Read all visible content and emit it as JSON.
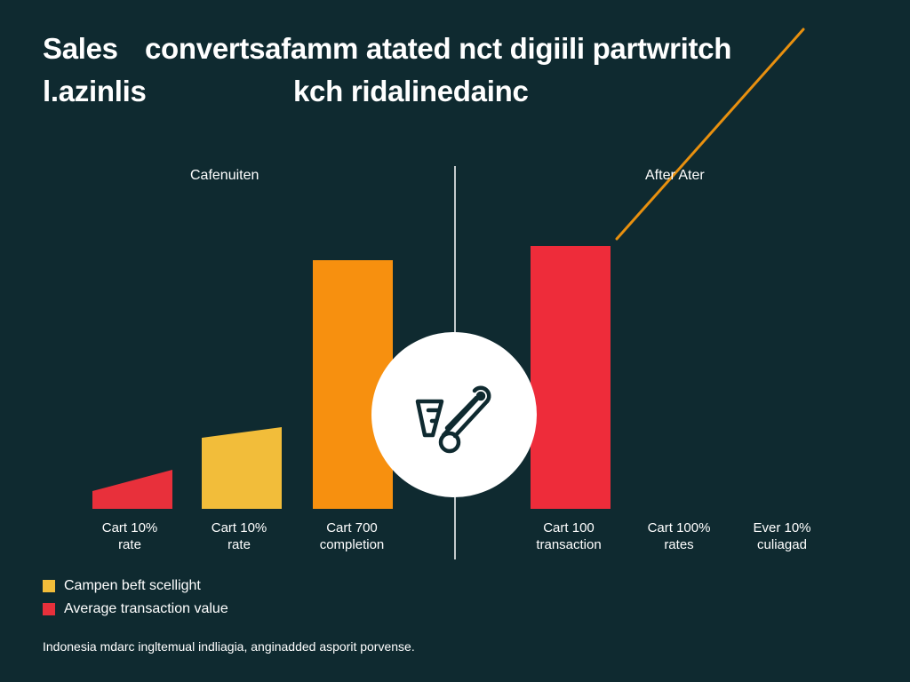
{
  "title": {
    "line1_part1": "Sales",
    "line1_part2": "convertsafamm atated nct digiili partwritch",
    "line2_part1": "l.azinlis",
    "line2_part2": "kch ridalinedainc"
  },
  "chart_data": {
    "type": "bar",
    "sections": [
      {
        "label": "Cafenuiten"
      },
      {
        "label": "After Ater"
      }
    ],
    "categories": [
      {
        "line1": "Cart 10%",
        "line2": "rate"
      },
      {
        "line1": "Cart 10%",
        "line2": "rate"
      },
      {
        "line1": "Cart 700",
        "line2": "completion"
      },
      {
        "line1": "Cart 100",
        "line2": "transaction"
      },
      {
        "line1": "Cart 100%",
        "line2": "rates"
      },
      {
        "line1": "Ever 10%",
        "line2": "culiagad"
      }
    ],
    "bars": [
      {
        "category_index": 0,
        "color": "#e8303b",
        "shape": "wedge",
        "value_left": 10,
        "value_right": 22
      },
      {
        "category_index": 1,
        "color": "#f2bd3a",
        "shape": "wedge",
        "value_left": 40,
        "value_right": 46
      },
      {
        "category_index": 2,
        "color": "#f7900f",
        "shape": "rect",
        "value": 140
      },
      {
        "category_index": 3,
        "color": "#ee2c3a",
        "shape": "rect",
        "value": 148
      }
    ],
    "trend_line": {
      "color": "#e8900f",
      "values": [
        152,
        270
      ]
    },
    "ylim": [
      0,
      250
    ],
    "center_icon": "cart-with-tag-icon"
  },
  "legend": [
    {
      "label": "Campen beft scellight",
      "color": "#f2bd3a"
    },
    {
      "label": "Average transaction value",
      "color": "#e8303b"
    }
  ],
  "footnote": "Indonesia mdarc ingltemual indliagia, anginadded asporit porvense."
}
